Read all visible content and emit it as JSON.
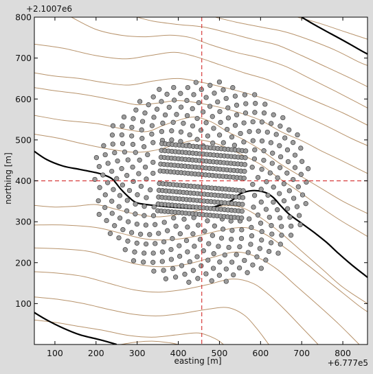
{
  "chart_data": {
    "type": "scatter",
    "title": "",
    "xlabel": "easting [m]",
    "ylabel": "northing [m]",
    "x_offset_label": "+6.777e5",
    "y_offset_label": "+2.1007e6",
    "xlim": [
      50,
      860
    ],
    "ylim": [
      0,
      800
    ],
    "xticks": [
      100,
      200,
      300,
      400,
      500,
      600,
      700,
      800
    ],
    "yticks": [
      100,
      200,
      300,
      400,
      500,
      600,
      700,
      800
    ],
    "grid": false,
    "legend": "none",
    "crosshair": {
      "x": 457,
      "y": 400,
      "color": "#d63a3a",
      "style": "dashed"
    },
    "colors": {
      "background": "#dcdcdc",
      "plot": "#ffffff",
      "contour": "#b7926a",
      "contour_major": "#000000",
      "marker_fill": "#9c9c9c",
      "marker_edge": "#3d3d3d"
    },
    "contour_lines": [
      [
        [
          50,
          628
        ],
        [
          100,
          620
        ],
        [
          150,
          614
        ],
        [
          200,
          606
        ],
        [
          250,
          596
        ],
        [
          300,
          586
        ],
        [
          350,
          590
        ],
        [
          400,
          596
        ],
        [
          450,
          590
        ],
        [
          500,
          580
        ],
        [
          550,
          566
        ],
        [
          600,
          548
        ],
        [
          650,
          520
        ],
        [
          700,
          498
        ],
        [
          750,
          472
        ],
        [
          800,
          448
        ],
        [
          860,
          418
        ]
      ],
      [
        [
          50,
          664
        ],
        [
          100,
          656
        ],
        [
          160,
          650
        ],
        [
          220,
          640
        ],
        [
          280,
          634
        ],
        [
          340,
          644
        ],
        [
          400,
          650
        ],
        [
          460,
          640
        ],
        [
          520,
          626
        ],
        [
          580,
          610
        ],
        [
          640,
          590
        ],
        [
          700,
          562
        ],
        [
          760,
          534
        ],
        [
          820,
          504
        ],
        [
          860,
          486
        ]
      ],
      [
        [
          50,
          734
        ],
        [
          120,
          724
        ],
        [
          200,
          706
        ],
        [
          270,
          698
        ],
        [
          330,
          706
        ],
        [
          390,
          714
        ],
        [
          440,
          704
        ],
        [
          500,
          684
        ],
        [
          560,
          664
        ],
        [
          620,
          646
        ],
        [
          680,
          618
        ],
        [
          740,
          592
        ],
        [
          800,
          566
        ],
        [
          860,
          536
        ]
      ],
      [
        [
          140,
          800
        ],
        [
          200,
          770
        ],
        [
          260,
          756
        ],
        [
          320,
          752
        ],
        [
          380,
          756
        ],
        [
          430,
          750
        ],
        [
          480,
          732
        ],
        [
          540,
          714
        ],
        [
          600,
          700
        ],
        [
          660,
          680
        ],
        [
          720,
          650
        ],
        [
          780,
          620
        ],
        [
          830,
          594
        ],
        [
          860,
          578
        ]
      ],
      [
        [
          300,
          800
        ],
        [
          340,
          790
        ],
        [
          400,
          782
        ],
        [
          460,
          776
        ],
        [
          520,
          762
        ],
        [
          580,
          746
        ],
        [
          640,
          732
        ],
        [
          700,
          706
        ],
        [
          760,
          678
        ],
        [
          820,
          650
        ],
        [
          860,
          630
        ]
      ],
      [
        [
          490,
          800
        ],
        [
          540,
          788
        ],
        [
          600,
          776
        ],
        [
          660,
          764
        ],
        [
          720,
          744
        ],
        [
          780,
          720
        ],
        [
          840,
          690
        ],
        [
          860,
          682
        ]
      ],
      [
        [
          690,
          800
        ],
        [
          740,
          786
        ],
        [
          800,
          766
        ],
        [
          860,
          746
        ]
      ],
      [
        [
          50,
          560
        ],
        [
          120,
          548
        ],
        [
          200,
          540
        ],
        [
          260,
          528
        ],
        [
          320,
          520
        ],
        [
          360,
          534
        ],
        [
          400,
          548
        ],
        [
          440,
          556
        ],
        [
          480,
          544
        ],
        [
          520,
          520
        ],
        [
          560,
          500
        ],
        [
          600,
          476
        ],
        [
          650,
          440
        ],
        [
          700,
          410
        ],
        [
          750,
          380
        ],
        [
          800,
          350
        ],
        [
          860,
          320
        ]
      ],
      [
        [
          50,
          514
        ],
        [
          110,
          504
        ],
        [
          170,
          490
        ],
        [
          230,
          478
        ],
        [
          290,
          470
        ],
        [
          340,
          474
        ],
        [
          400,
          490
        ],
        [
          450,
          500
        ],
        [
          500,
          488
        ],
        [
          550,
          466
        ],
        [
          600,
          440
        ],
        [
          640,
          410
        ],
        [
          690,
          376
        ],
        [
          740,
          340
        ],
        [
          790,
          306
        ],
        [
          840,
          276
        ],
        [
          860,
          264
        ]
      ],
      [
        [
          50,
          340
        ],
        [
          100,
          336
        ],
        [
          150,
          338
        ],
        [
          200,
          342
        ],
        [
          250,
          330
        ],
        [
          300,
          318
        ],
        [
          350,
          312
        ],
        [
          400,
          318
        ],
        [
          450,
          328
        ],
        [
          500,
          338
        ],
        [
          550,
          336
        ],
        [
          600,
          310
        ],
        [
          650,
          272
        ],
        [
          700,
          228
        ],
        [
          750,
          184
        ],
        [
          800,
          140
        ],
        [
          860,
          100
        ]
      ],
      [
        [
          50,
          292
        ],
        [
          120,
          292
        ],
        [
          200,
          286
        ],
        [
          260,
          272
        ],
        [
          320,
          258
        ],
        [
          380,
          256
        ],
        [
          440,
          264
        ],
        [
          500,
          278
        ],
        [
          560,
          286
        ],
        [
          610,
          270
        ],
        [
          660,
          236
        ],
        [
          720,
          190
        ],
        [
          780,
          142
        ],
        [
          840,
          94
        ],
        [
          860,
          80
        ]
      ],
      [
        [
          50,
          236
        ],
        [
          110,
          234
        ],
        [
          180,
          228
        ],
        [
          240,
          212
        ],
        [
          300,
          196
        ],
        [
          360,
          190
        ],
        [
          420,
          196
        ],
        [
          480,
          212
        ],
        [
          540,
          226
        ],
        [
          590,
          214
        ],
        [
          640,
          184
        ],
        [
          690,
          140
        ],
        [
          740,
          96
        ],
        [
          790,
          50
        ],
        [
          840,
          0
        ]
      ],
      [
        [
          50,
          178
        ],
        [
          110,
          174
        ],
        [
          170,
          166
        ],
        [
          230,
          150
        ],
        [
          290,
          134
        ],
        [
          350,
          128
        ],
        [
          410,
          134
        ],
        [
          470,
          146
        ],
        [
          530,
          160
        ],
        [
          580,
          150
        ],
        [
          620,
          122
        ],
        [
          660,
          84
        ],
        [
          700,
          42
        ],
        [
          740,
          0
        ]
      ],
      [
        [
          50,
          116
        ],
        [
          110,
          110
        ],
        [
          170,
          100
        ],
        [
          230,
          86
        ],
        [
          290,
          74
        ],
        [
          350,
          70
        ],
        [
          410,
          76
        ],
        [
          470,
          86
        ],
        [
          520,
          90
        ],
        [
          560,
          72
        ],
        [
          590,
          40
        ],
        [
          620,
          0
        ]
      ],
      [
        [
          50,
          60
        ],
        [
          100,
          54
        ],
        [
          160,
          44
        ],
        [
          220,
          34
        ],
        [
          280,
          22
        ],
        [
          340,
          18
        ],
        [
          400,
          24
        ],
        [
          450,
          28
        ],
        [
          490,
          14
        ],
        [
          510,
          0
        ]
      ],
      [
        [
          260,
          0
        ],
        [
          300,
          6
        ],
        [
          340,
          8
        ],
        [
          380,
          4
        ],
        [
          400,
          0
        ]
      ]
    ],
    "major_contours": [
      [
        [
          50,
          472
        ],
        [
          80,
          452
        ],
        [
          120,
          436
        ],
        [
          160,
          428
        ],
        [
          200,
          420
        ],
        [
          220,
          414
        ],
        [
          240,
          404
        ],
        [
          260,
          380
        ],
        [
          280,
          360
        ],
        [
          300,
          346
        ],
        [
          340,
          340
        ],
        [
          380,
          336
        ],
        [
          410,
          334
        ],
        [
          440,
          332
        ],
        [
          470,
          334
        ],
        [
          500,
          340
        ],
        [
          530,
          352
        ],
        [
          550,
          368
        ],
        [
          580,
          376
        ],
        [
          610,
          372
        ],
        [
          630,
          360
        ],
        [
          650,
          338
        ],
        [
          670,
          318
        ],
        [
          700,
          296
        ],
        [
          730,
          274
        ],
        [
          760,
          250
        ],
        [
          790,
          222
        ],
        [
          820,
          196
        ],
        [
          850,
          172
        ],
        [
          860,
          164
        ]
      ],
      [
        [
          50,
          78
        ],
        [
          80,
          60
        ],
        [
          120,
          40
        ],
        [
          160,
          24
        ],
        [
          200,
          14
        ],
        [
          230,
          6
        ],
        [
          250,
          0
        ]
      ],
      [
        [
          700,
          800
        ],
        [
          730,
          782
        ],
        [
          770,
          760
        ],
        [
          810,
          738
        ],
        [
          845,
          718
        ],
        [
          860,
          710
        ]
      ]
    ],
    "outer_ring": {
      "center": [
        457,
        395
      ],
      "radius_x": 265,
      "radius_y": 250
    },
    "inner_array": {
      "center": [
        457,
        400
      ],
      "width": 210,
      "height": 150,
      "gap": 14
    },
    "dots_outer_count": 410,
    "dots_inner_count": 250
  }
}
